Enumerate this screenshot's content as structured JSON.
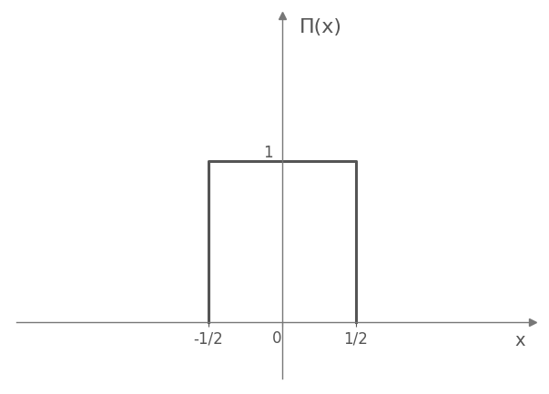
{
  "chart_data": {
    "type": "line",
    "x": [
      -0.5,
      -0.5,
      0.5,
      0.5
    ],
    "values": [
      0,
      1,
      1,
      0
    ],
    "color": "#555555",
    "xlabel": "x",
    "ylabel": "Π(x)",
    "xlim": [
      -1.8,
      1.7
    ],
    "ylim": [
      -0.35,
      1.9
    ],
    "xticks": [
      {
        "value": -0.5,
        "label": "-1/2"
      },
      0,
      {
        "value": 0.5,
        "label": "1/2"
      }
    ],
    "yticks": [
      1
    ]
  }
}
